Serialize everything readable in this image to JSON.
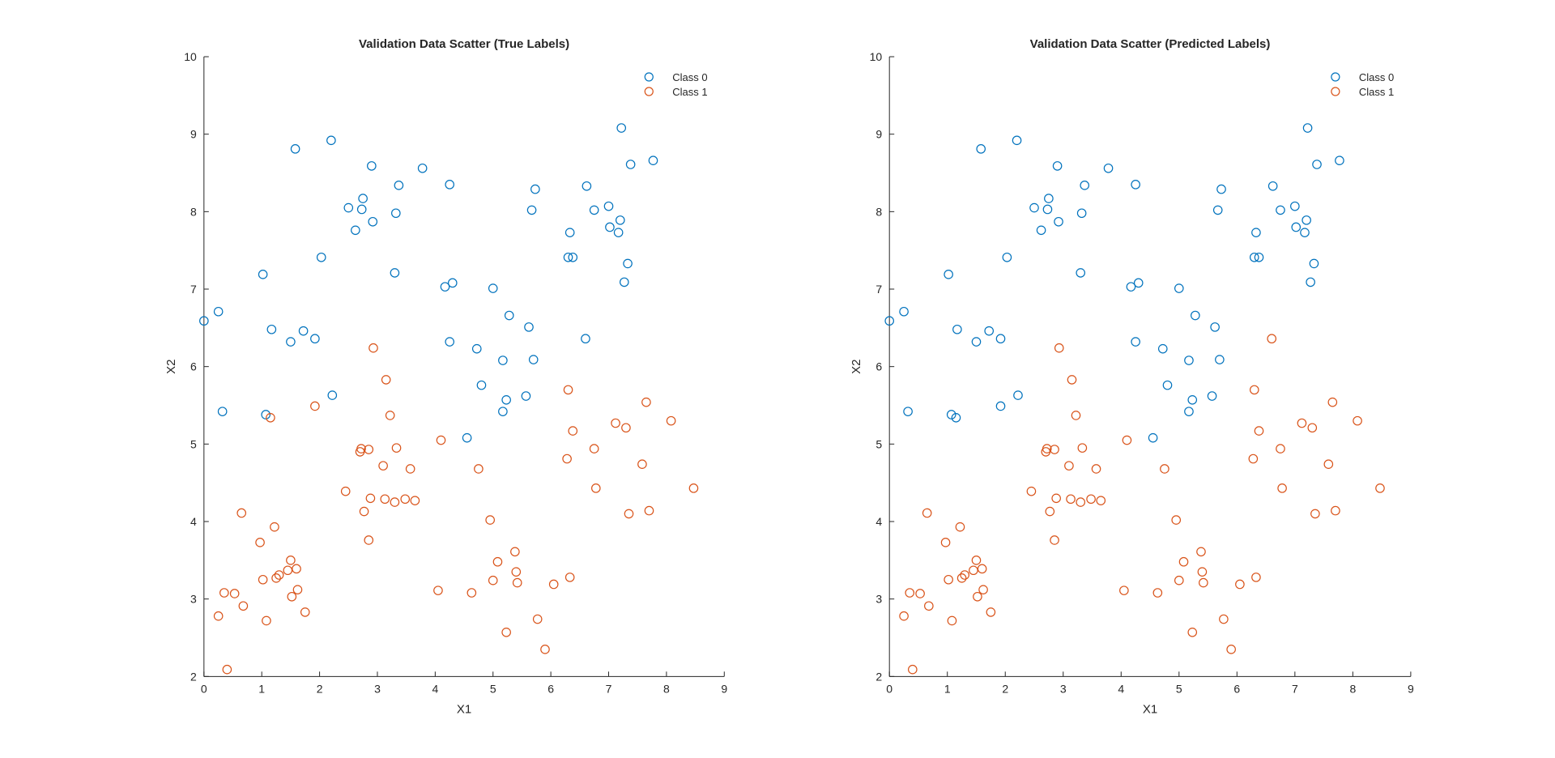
{
  "chart_data": [
    {
      "type": "scatter",
      "title": "Validation Data Scatter (True Labels)",
      "xlabel": "X1",
      "ylabel": "X2",
      "xlim": [
        0,
        9
      ],
      "ylim": [
        2,
        10
      ],
      "xticks": [
        "0",
        "1",
        "2",
        "3",
        "4",
        "5",
        "6",
        "7",
        "8",
        "9"
      ],
      "yticks": [
        "2",
        "3",
        "4",
        "5",
        "6",
        "7",
        "8",
        "9",
        "10"
      ],
      "grid": false,
      "legend_position": "top-right",
      "series": [
        {
          "name": "Class 0",
          "color": "#0072BD",
          "points": [
            [
              0.0,
              6.59
            ],
            [
              0.25,
              6.71
            ],
            [
              0.32,
              5.42
            ],
            [
              1.02,
              7.19
            ],
            [
              1.07,
              5.38
            ],
            [
              1.17,
              6.48
            ],
            [
              1.5,
              6.32
            ],
            [
              1.58,
              8.81
            ],
            [
              1.72,
              6.46
            ],
            [
              1.92,
              6.36
            ],
            [
              2.03,
              7.41
            ],
            [
              2.22,
              5.63
            ],
            [
              2.2,
              8.92
            ],
            [
              2.5,
              8.05
            ],
            [
              2.62,
              7.76
            ],
            [
              2.73,
              8.03
            ],
            [
              2.75,
              8.17
            ],
            [
              2.9,
              8.59
            ],
            [
              2.92,
              7.87
            ],
            [
              3.3,
              7.21
            ],
            [
              3.32,
              7.98
            ],
            [
              3.37,
              8.34
            ],
            [
              3.78,
              8.56
            ],
            [
              4.17,
              7.03
            ],
            [
              4.25,
              6.32
            ],
            [
              4.25,
              8.35
            ],
            [
              4.3,
              7.08
            ],
            [
              4.55,
              5.08
            ],
            [
              4.72,
              6.23
            ],
            [
              4.8,
              5.76
            ],
            [
              5.0,
              7.01
            ],
            [
              5.17,
              6.08
            ],
            [
              5.17,
              5.42
            ],
            [
              5.23,
              5.57
            ],
            [
              5.28,
              6.66
            ],
            [
              5.57,
              5.62
            ],
            [
              5.62,
              6.51
            ],
            [
              5.67,
              8.02
            ],
            [
              5.7,
              6.09
            ],
            [
              5.73,
              8.29
            ],
            [
              6.3,
              7.41
            ],
            [
              6.33,
              7.73
            ],
            [
              6.38,
              7.41
            ],
            [
              6.6,
              6.36
            ],
            [
              6.62,
              8.33
            ],
            [
              6.75,
              8.02
            ],
            [
              7.0,
              8.07
            ],
            [
              7.02,
              7.8
            ],
            [
              7.17,
              7.73
            ],
            [
              7.2,
              7.89
            ],
            [
              7.22,
              9.08
            ],
            [
              7.27,
              7.09
            ],
            [
              7.33,
              7.33
            ],
            [
              7.38,
              8.61
            ],
            [
              7.77,
              8.66
            ]
          ]
        },
        {
          "name": "Class 1",
          "color": "#D95319",
          "points": [
            [
              0.25,
              2.78
            ],
            [
              0.35,
              3.08
            ],
            [
              0.4,
              2.09
            ],
            [
              0.53,
              3.07
            ],
            [
              0.65,
              4.11
            ],
            [
              0.68,
              2.91
            ],
            [
              0.97,
              3.73
            ],
            [
              1.02,
              3.25
            ],
            [
              1.08,
              2.72
            ],
            [
              1.15,
              5.34
            ],
            [
              1.22,
              3.93
            ],
            [
              1.25,
              3.27
            ],
            [
              1.3,
              3.31
            ],
            [
              1.45,
              3.37
            ],
            [
              1.5,
              3.5
            ],
            [
              1.52,
              3.03
            ],
            [
              1.6,
              3.39
            ],
            [
              1.62,
              3.12
            ],
            [
              1.75,
              2.83
            ],
            [
              1.92,
              5.49
            ],
            [
              2.45,
              4.39
            ],
            [
              2.7,
              4.9
            ],
            [
              2.72,
              4.94
            ],
            [
              2.77,
              4.13
            ],
            [
              2.85,
              3.76
            ],
            [
              2.85,
              4.93
            ],
            [
              2.88,
              4.3
            ],
            [
              2.93,
              6.24
            ],
            [
              3.1,
              4.72
            ],
            [
              3.13,
              4.29
            ],
            [
              3.15,
              5.83
            ],
            [
              3.22,
              5.37
            ],
            [
              3.3,
              4.25
            ],
            [
              3.33,
              4.95
            ],
            [
              3.48,
              4.29
            ],
            [
              3.57,
              4.68
            ],
            [
              3.65,
              4.27
            ],
            [
              4.05,
              3.11
            ],
            [
              4.1,
              5.05
            ],
            [
              4.63,
              3.08
            ],
            [
              4.75,
              4.68
            ],
            [
              4.95,
              4.02
            ],
            [
              5.0,
              3.24
            ],
            [
              5.08,
              3.48
            ],
            [
              5.23,
              2.57
            ],
            [
              5.38,
              3.61
            ],
            [
              5.4,
              3.35
            ],
            [
              5.42,
              3.21
            ],
            [
              5.77,
              2.74
            ],
            [
              5.9,
              2.35
            ],
            [
              6.05,
              3.19
            ],
            [
              6.28,
              4.81
            ],
            [
              6.3,
              5.7
            ],
            [
              6.33,
              3.28
            ],
            [
              6.38,
              5.17
            ],
            [
              6.75,
              4.94
            ],
            [
              6.78,
              4.43
            ],
            [
              7.12,
              5.27
            ],
            [
              7.3,
              5.21
            ],
            [
              7.35,
              4.1
            ],
            [
              7.58,
              4.74
            ],
            [
              7.65,
              5.54
            ],
            [
              7.7,
              4.14
            ],
            [
              8.08,
              5.3
            ],
            [
              8.47,
              4.43
            ]
          ]
        }
      ]
    },
    {
      "type": "scatter",
      "title": "Validation Data Scatter (Predicted Labels)",
      "xlabel": "X1",
      "ylabel": "X2",
      "xlim": [
        0,
        9
      ],
      "ylim": [
        2,
        10
      ],
      "xticks": [
        "0",
        "1",
        "2",
        "3",
        "4",
        "5",
        "6",
        "7",
        "8",
        "9"
      ],
      "yticks": [
        "2",
        "3",
        "4",
        "5",
        "6",
        "7",
        "8",
        "9",
        "10"
      ],
      "grid": false,
      "legend_position": "top-right",
      "series": [
        {
          "name": "Class 0",
          "color": "#0072BD",
          "points": [
            [
              0.0,
              6.59
            ],
            [
              0.25,
              6.71
            ],
            [
              0.32,
              5.42
            ],
            [
              1.02,
              7.19
            ],
            [
              1.07,
              5.38
            ],
            [
              1.15,
              5.34
            ],
            [
              1.17,
              6.48
            ],
            [
              1.5,
              6.32
            ],
            [
              1.58,
              8.81
            ],
            [
              1.72,
              6.46
            ],
            [
              1.92,
              6.36
            ],
            [
              1.92,
              5.49
            ],
            [
              2.03,
              7.41
            ],
            [
              2.22,
              5.63
            ],
            [
              2.2,
              8.92
            ],
            [
              2.5,
              8.05
            ],
            [
              2.62,
              7.76
            ],
            [
              2.73,
              8.03
            ],
            [
              2.75,
              8.17
            ],
            [
              2.9,
              8.59
            ],
            [
              2.92,
              7.87
            ],
            [
              3.3,
              7.21
            ],
            [
              3.32,
              7.98
            ],
            [
              3.37,
              8.34
            ],
            [
              3.78,
              8.56
            ],
            [
              4.17,
              7.03
            ],
            [
              4.25,
              6.32
            ],
            [
              4.25,
              8.35
            ],
            [
              4.3,
              7.08
            ],
            [
              4.55,
              5.08
            ],
            [
              4.72,
              6.23
            ],
            [
              4.8,
              5.76
            ],
            [
              5.0,
              7.01
            ],
            [
              5.17,
              6.08
            ],
            [
              5.17,
              5.42
            ],
            [
              5.23,
              5.57
            ],
            [
              5.28,
              6.66
            ],
            [
              5.57,
              5.62
            ],
            [
              5.62,
              6.51
            ],
            [
              5.67,
              8.02
            ],
            [
              5.7,
              6.09
            ],
            [
              5.73,
              8.29
            ],
            [
              6.3,
              7.41
            ],
            [
              6.33,
              7.73
            ],
            [
              6.38,
              7.41
            ],
            [
              6.62,
              8.33
            ],
            [
              6.75,
              8.02
            ],
            [
              7.0,
              8.07
            ],
            [
              7.02,
              7.8
            ],
            [
              7.17,
              7.73
            ],
            [
              7.2,
              7.89
            ],
            [
              7.22,
              9.08
            ],
            [
              7.27,
              7.09
            ],
            [
              7.33,
              7.33
            ],
            [
              7.38,
              8.61
            ],
            [
              7.77,
              8.66
            ]
          ]
        },
        {
          "name": "Class 1",
          "color": "#D95319",
          "points": [
            [
              0.25,
              2.78
            ],
            [
              0.35,
              3.08
            ],
            [
              0.4,
              2.09
            ],
            [
              0.53,
              3.07
            ],
            [
              0.65,
              4.11
            ],
            [
              0.68,
              2.91
            ],
            [
              0.97,
              3.73
            ],
            [
              1.02,
              3.25
            ],
            [
              1.08,
              2.72
            ],
            [
              1.22,
              3.93
            ],
            [
              1.25,
              3.27
            ],
            [
              1.3,
              3.31
            ],
            [
              1.45,
              3.37
            ],
            [
              1.5,
              3.5
            ],
            [
              1.52,
              3.03
            ],
            [
              1.6,
              3.39
            ],
            [
              1.62,
              3.12
            ],
            [
              1.75,
              2.83
            ],
            [
              2.45,
              4.39
            ],
            [
              2.7,
              4.9
            ],
            [
              2.72,
              4.94
            ],
            [
              2.77,
              4.13
            ],
            [
              2.85,
              3.76
            ],
            [
              2.85,
              4.93
            ],
            [
              2.88,
              4.3
            ],
            [
              2.93,
              6.24
            ],
            [
              3.1,
              4.72
            ],
            [
              3.13,
              4.29
            ],
            [
              3.15,
              5.83
            ],
            [
              3.22,
              5.37
            ],
            [
              3.3,
              4.25
            ],
            [
              3.33,
              4.95
            ],
            [
              3.48,
              4.29
            ],
            [
              3.57,
              4.68
            ],
            [
              3.65,
              4.27
            ],
            [
              4.05,
              3.11
            ],
            [
              4.1,
              5.05
            ],
            [
              4.63,
              3.08
            ],
            [
              4.75,
              4.68
            ],
            [
              4.95,
              4.02
            ],
            [
              5.0,
              3.24
            ],
            [
              5.08,
              3.48
            ],
            [
              5.23,
              2.57
            ],
            [
              5.38,
              3.61
            ],
            [
              5.4,
              3.35
            ],
            [
              5.42,
              3.21
            ],
            [
              5.77,
              2.74
            ],
            [
              5.9,
              2.35
            ],
            [
              6.05,
              3.19
            ],
            [
              6.28,
              4.81
            ],
            [
              6.3,
              5.7
            ],
            [
              6.33,
              3.28
            ],
            [
              6.38,
              5.17
            ],
            [
              6.6,
              6.36
            ],
            [
              6.75,
              4.94
            ],
            [
              6.78,
              4.43
            ],
            [
              7.12,
              5.27
            ],
            [
              7.3,
              5.21
            ],
            [
              7.35,
              4.1
            ],
            [
              7.58,
              4.74
            ],
            [
              7.65,
              5.54
            ],
            [
              7.7,
              4.14
            ],
            [
              8.08,
              5.3
            ],
            [
              8.47,
              4.43
            ]
          ]
        }
      ]
    }
  ]
}
